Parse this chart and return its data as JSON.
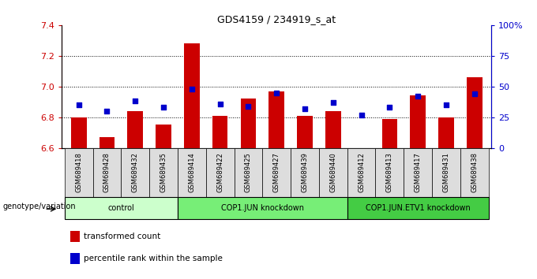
{
  "title": "GDS4159 / 234919_s_at",
  "samples": [
    "GSM689418",
    "GSM689428",
    "GSM689432",
    "GSM689435",
    "GSM689414",
    "GSM689422",
    "GSM689425",
    "GSM689427",
    "GSM689439",
    "GSM689440",
    "GSM689412",
    "GSM689413",
    "GSM689417",
    "GSM689431",
    "GSM689438"
  ],
  "red_values": [
    6.8,
    6.67,
    6.84,
    6.75,
    7.28,
    6.81,
    6.92,
    6.97,
    6.81,
    6.84,
    6.6,
    6.79,
    6.94,
    6.8,
    7.06
  ],
  "blue_values": [
    35,
    30,
    38,
    33,
    48,
    36,
    34,
    45,
    32,
    37,
    27,
    33,
    42,
    35,
    44
  ],
  "ylim_left": [
    6.6,
    7.4
  ],
  "ylim_right": [
    0,
    100
  ],
  "yticks_left": [
    6.6,
    6.8,
    7.0,
    7.2,
    7.4
  ],
  "yticks_right": [
    0,
    25,
    50,
    75,
    100
  ],
  "ytick_labels_right": [
    "0",
    "25",
    "50",
    "75",
    "100%"
  ],
  "groups": [
    {
      "label": "control",
      "start": 0,
      "end": 4,
      "color": "#ccffcc"
    },
    {
      "label": "COP1.JUN knockdown",
      "start": 4,
      "end": 10,
      "color": "#77ee77"
    },
    {
      "label": "COP1.JUN.ETV1 knockdown",
      "start": 10,
      "end": 15,
      "color": "#44cc44"
    }
  ],
  "bar_color": "#cc0000",
  "dot_color": "#0000cc",
  "bg_color": "white",
  "tick_color_left": "#cc0000",
  "tick_color_right": "#0000cc",
  "legend_red": "transformed count",
  "legend_blue": "percentile rank within the sample",
  "genotype_label": "genotype/variation"
}
